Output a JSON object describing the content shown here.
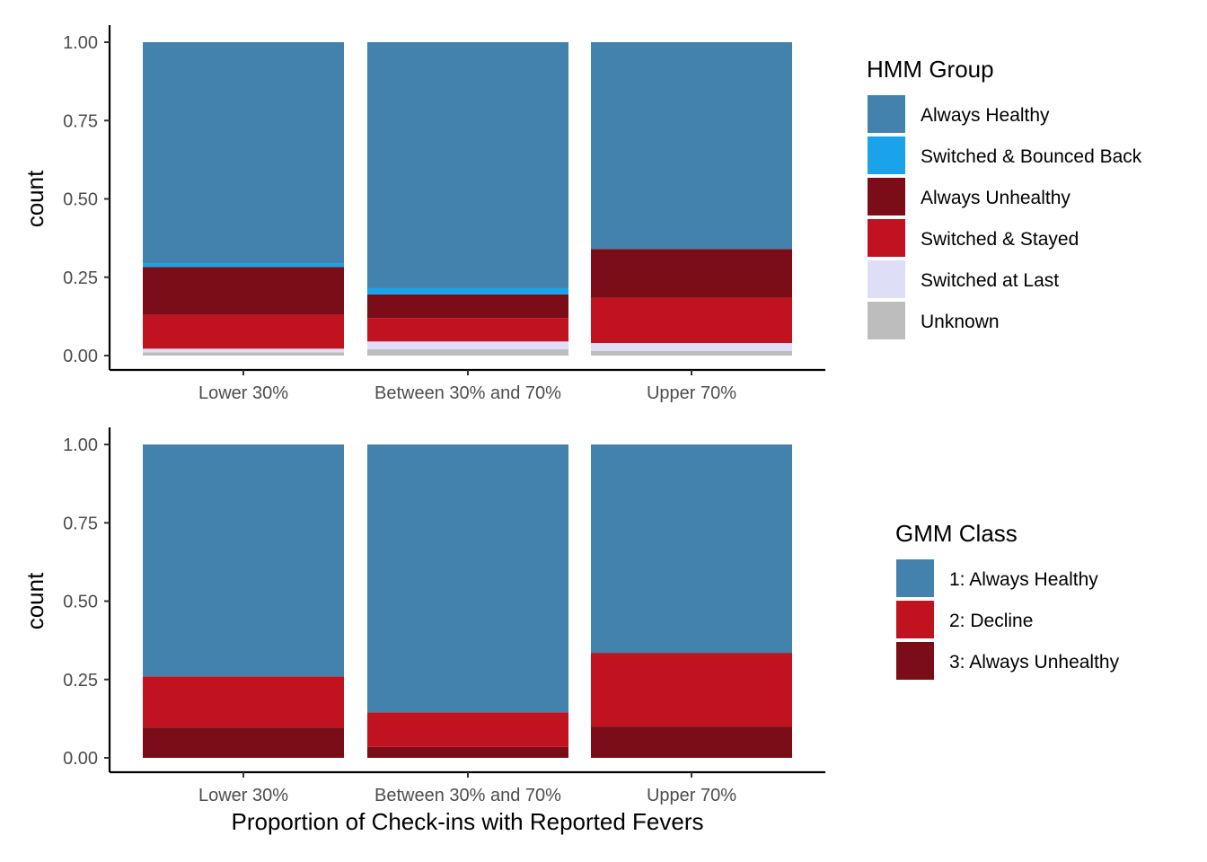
{
  "chart_data": [
    {
      "type": "bar",
      "stacked": "fill",
      "categories": [
        "Lower 30%",
        "Between 30% and 70%",
        "Upper 70%"
      ],
      "ylabel": "count",
      "xlabel": "",
      "ylim": [
        0,
        1
      ],
      "yticks": [
        "0.00",
        "0.25",
        "0.50",
        "0.75",
        "1.00"
      ],
      "legend_title": "HMM Group",
      "legend_position": "right",
      "grid": false,
      "series": [
        {
          "name": "Always Healthy",
          "color": "#4282AC",
          "values": [
            0.705,
            0.785,
            0.66
          ]
        },
        {
          "name": "Switched & Bounced Back",
          "color": "#1AA3E8",
          "values": [
            0.012,
            0.02,
            0.0
          ]
        },
        {
          "name": "Always Unhealthy",
          "color": "#7A0D17",
          "values": [
            0.153,
            0.075,
            0.155
          ]
        },
        {
          "name": "Switched & Stayed",
          "color": "#C0131F",
          "values": [
            0.108,
            0.075,
            0.145
          ]
        },
        {
          "name": "Switched at Last",
          "color": "#DEDEF7",
          "values": [
            0.012,
            0.025,
            0.025
          ]
        },
        {
          "name": "Unknown",
          "color": "#BDBDBD",
          "values": [
            0.01,
            0.02,
            0.015
          ]
        }
      ]
    },
    {
      "type": "bar",
      "stacked": "fill",
      "categories": [
        "Lower 30%",
        "Between 30% and 70%",
        "Upper 70%"
      ],
      "ylabel": "count",
      "xlabel": "Proportion of Check-ins with Reported Fevers",
      "ylim": [
        0,
        1
      ],
      "yticks": [
        "0.00",
        "0.25",
        "0.50",
        "0.75",
        "1.00"
      ],
      "legend_title": "GMM Class",
      "legend_position": "right",
      "grid": false,
      "series": [
        {
          "name": "1: Always Healthy",
          "color": "#4282AC",
          "values": [
            0.74,
            0.855,
            0.665
          ]
        },
        {
          "name": "2: Decline",
          "color": "#C0131F",
          "values": [
            0.163,
            0.11,
            0.235
          ]
        },
        {
          "name": "3: Always Unhealthy",
          "color": "#7A0D17",
          "values": [
            0.097,
            0.035,
            0.1
          ]
        }
      ]
    }
  ]
}
